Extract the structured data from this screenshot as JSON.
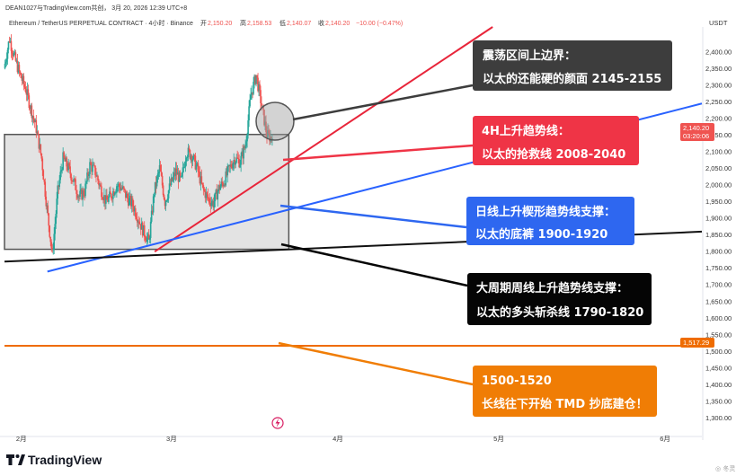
{
  "header": {
    "published": "DEAN1027与TradingView.com共创， 3月 20, 2026 12:39 UTC+8",
    "symbol": "Ethereum / TetherUS PERPETUAL CONTRACT · 4小时 · Binance",
    "open_label": "开",
    "open": "2,150.20",
    "high_label": "高",
    "high": "2,158.53",
    "low_label": "低",
    "low": "2,140.07",
    "close_label": "收",
    "close": "2,140.20",
    "change": "−10.00 (−0.47%)",
    "currency": "USDT"
  },
  "price_tag": {
    "price": "2,140.20",
    "countdown": "03:20:06"
  },
  "level_tag": {
    "price": "1,517.29"
  },
  "footer": {
    "brand": "TradingView",
    "watermark": "◎ 冬灵"
  },
  "colors": {
    "bull": "#26a69a",
    "bear": "#ef5350",
    "red_line": "#e8253a",
    "blue_line": "#2962ff",
    "orange": "#ef6c00",
    "black_line": "#111111"
  },
  "chart_data": {
    "type": "candlestick",
    "symbol": "ETHUSDT.P",
    "timeframe": "4小时",
    "y_range": [
      1250,
      2475
    ],
    "y_ticks": [
      2400,
      2350,
      2300,
      2250,
      2200,
      2150,
      2100,
      2050,
      2000,
      1950,
      1900,
      1850,
      1800,
      1750,
      1700,
      1650,
      1600,
      1550,
      1500,
      1450,
      1400,
      1350,
      1300
    ],
    "y_tick_labels": [
      "2,400.00",
      "2,350.00",
      "2,300.00",
      "2,250.00",
      "2,200.00",
      "2,150.00",
      "2,100.00",
      "2,050.00",
      "2,000.00",
      "1,950.00",
      "1,900.00",
      "1,850.00",
      "1,800.00",
      "1,750.00",
      "1,700.00",
      "1,650.00",
      "1,600.00",
      "1,550.00",
      "1,500.00",
      "1,450.00",
      "1,400.00",
      "1,350.00",
      "1,300.00"
    ],
    "x_range": [
      "2026-01-29",
      "2026-06-08"
    ],
    "x_ticks": [
      {
        "date": "2026-02-01",
        "label": "2月"
      },
      {
        "date": "2026-03-01",
        "label": "3月"
      },
      {
        "date": "2026-04-01",
        "label": "4月"
      },
      {
        "date": "2026-05-01",
        "label": "5月"
      },
      {
        "date": "2026-06-01",
        "label": "6月"
      }
    ],
    "price_path": [
      [
        "2026-01-29",
        2350
      ],
      [
        "2026-01-30",
        2440
      ],
      [
        "2026-01-31",
        2380
      ],
      [
        "2026-02-01",
        2330
      ],
      [
        "2026-02-02",
        2290
      ],
      [
        "2026-02-03",
        2230
      ],
      [
        "2026-02-04",
        2170
      ],
      [
        "2026-02-05",
        2080
      ],
      [
        "2026-02-06",
        1930
      ],
      [
        "2026-02-07",
        1790
      ],
      [
        "2026-02-08",
        1980
      ],
      [
        "2026-02-09",
        2080
      ],
      [
        "2026-02-10",
        2050
      ],
      [
        "2026-02-11",
        2010
      ],
      [
        "2026-02-12",
        1965
      ],
      [
        "2026-02-13",
        1980
      ],
      [
        "2026-02-14",
        2060
      ],
      [
        "2026-02-15",
        2040
      ],
      [
        "2026-02-16",
        1990
      ],
      [
        "2026-02-17",
        1950
      ],
      [
        "2026-02-18",
        1970
      ],
      [
        "2026-02-19",
        2000
      ],
      [
        "2026-02-20",
        1990
      ],
      [
        "2026-02-21",
        1960
      ],
      [
        "2026-02-22",
        1940
      ],
      [
        "2026-02-23",
        1900
      ],
      [
        "2026-02-24",
        1860
      ],
      [
        "2026-02-25",
        1830
      ],
      [
        "2026-02-26",
        1980
      ],
      [
        "2026-02-27",
        2050
      ],
      [
        "2026-02-28",
        1950
      ],
      [
        "2026-03-01",
        2000
      ],
      [
        "2026-03-02",
        2040
      ],
      [
        "2026-03-03",
        2010
      ],
      [
        "2026-03-04",
        2100
      ],
      [
        "2026-03-05",
        2090
      ],
      [
        "2026-03-06",
        2050
      ],
      [
        "2026-03-07",
        1990
      ],
      [
        "2026-03-08",
        1960
      ],
      [
        "2026-03-09",
        1945
      ],
      [
        "2026-03-10",
        1990
      ],
      [
        "2026-03-11",
        2010
      ],
      [
        "2026-03-12",
        2050
      ],
      [
        "2026-03-13",
        2080
      ],
      [
        "2026-03-14",
        2070
      ],
      [
        "2026-03-15",
        2120
      ],
      [
        "2026-03-16",
        2270
      ],
      [
        "2026-03-17",
        2330
      ],
      [
        "2026-03-18",
        2240
      ],
      [
        "2026-03-19",
        2150
      ],
      [
        "2026-03-20",
        2140
      ]
    ],
    "range_box": {
      "from": "2026-01-29",
      "to": "2026-03-23",
      "top": 2152,
      "bottom": 1807
    },
    "lines": [
      {
        "color": "red",
        "from": [
          "2026-02-26",
          1800
        ],
        "to": [
          "2026-04-30",
          2475
        ]
      },
      {
        "color": "blue",
        "from": [
          "2026-02-06",
          1740
        ],
        "to": [
          "2026-06-08",
          2245
        ]
      },
      {
        "color": "black",
        "from": [
          "2026-01-29",
          1770
        ],
        "to": [
          "2026-06-08",
          1860
        ]
      },
      {
        "color": "orange",
        "from": [
          "2026-01-29",
          1517
        ],
        "to": [
          "2026-06-08",
          1517
        ]
      }
    ],
    "annotations": [
      {
        "color": "#3d3d3d",
        "lines": [
          "震荡区间上边界：",
          "以太的还能硬的颜面 2145-2155"
        ]
      },
      {
        "color": "#ef3446",
        "lines": [
          "4H上升趋势线：",
          "以太的抢救线 2008-2040"
        ]
      },
      {
        "color": "#2e67f0",
        "lines": [
          "日线上升楔形趋势线支撑：",
          "以太的底裤 1900-1920"
        ]
      },
      {
        "color": "#050505",
        "lines": [
          "大周期周线上升趋势线支撑：",
          "以太的多头斩杀线 1790-1820"
        ]
      },
      {
        "color": "#f07d05",
        "lines": [
          "1500-1520",
          "长线往下开始 TMD 抄底建仓！"
        ]
      }
    ]
  }
}
